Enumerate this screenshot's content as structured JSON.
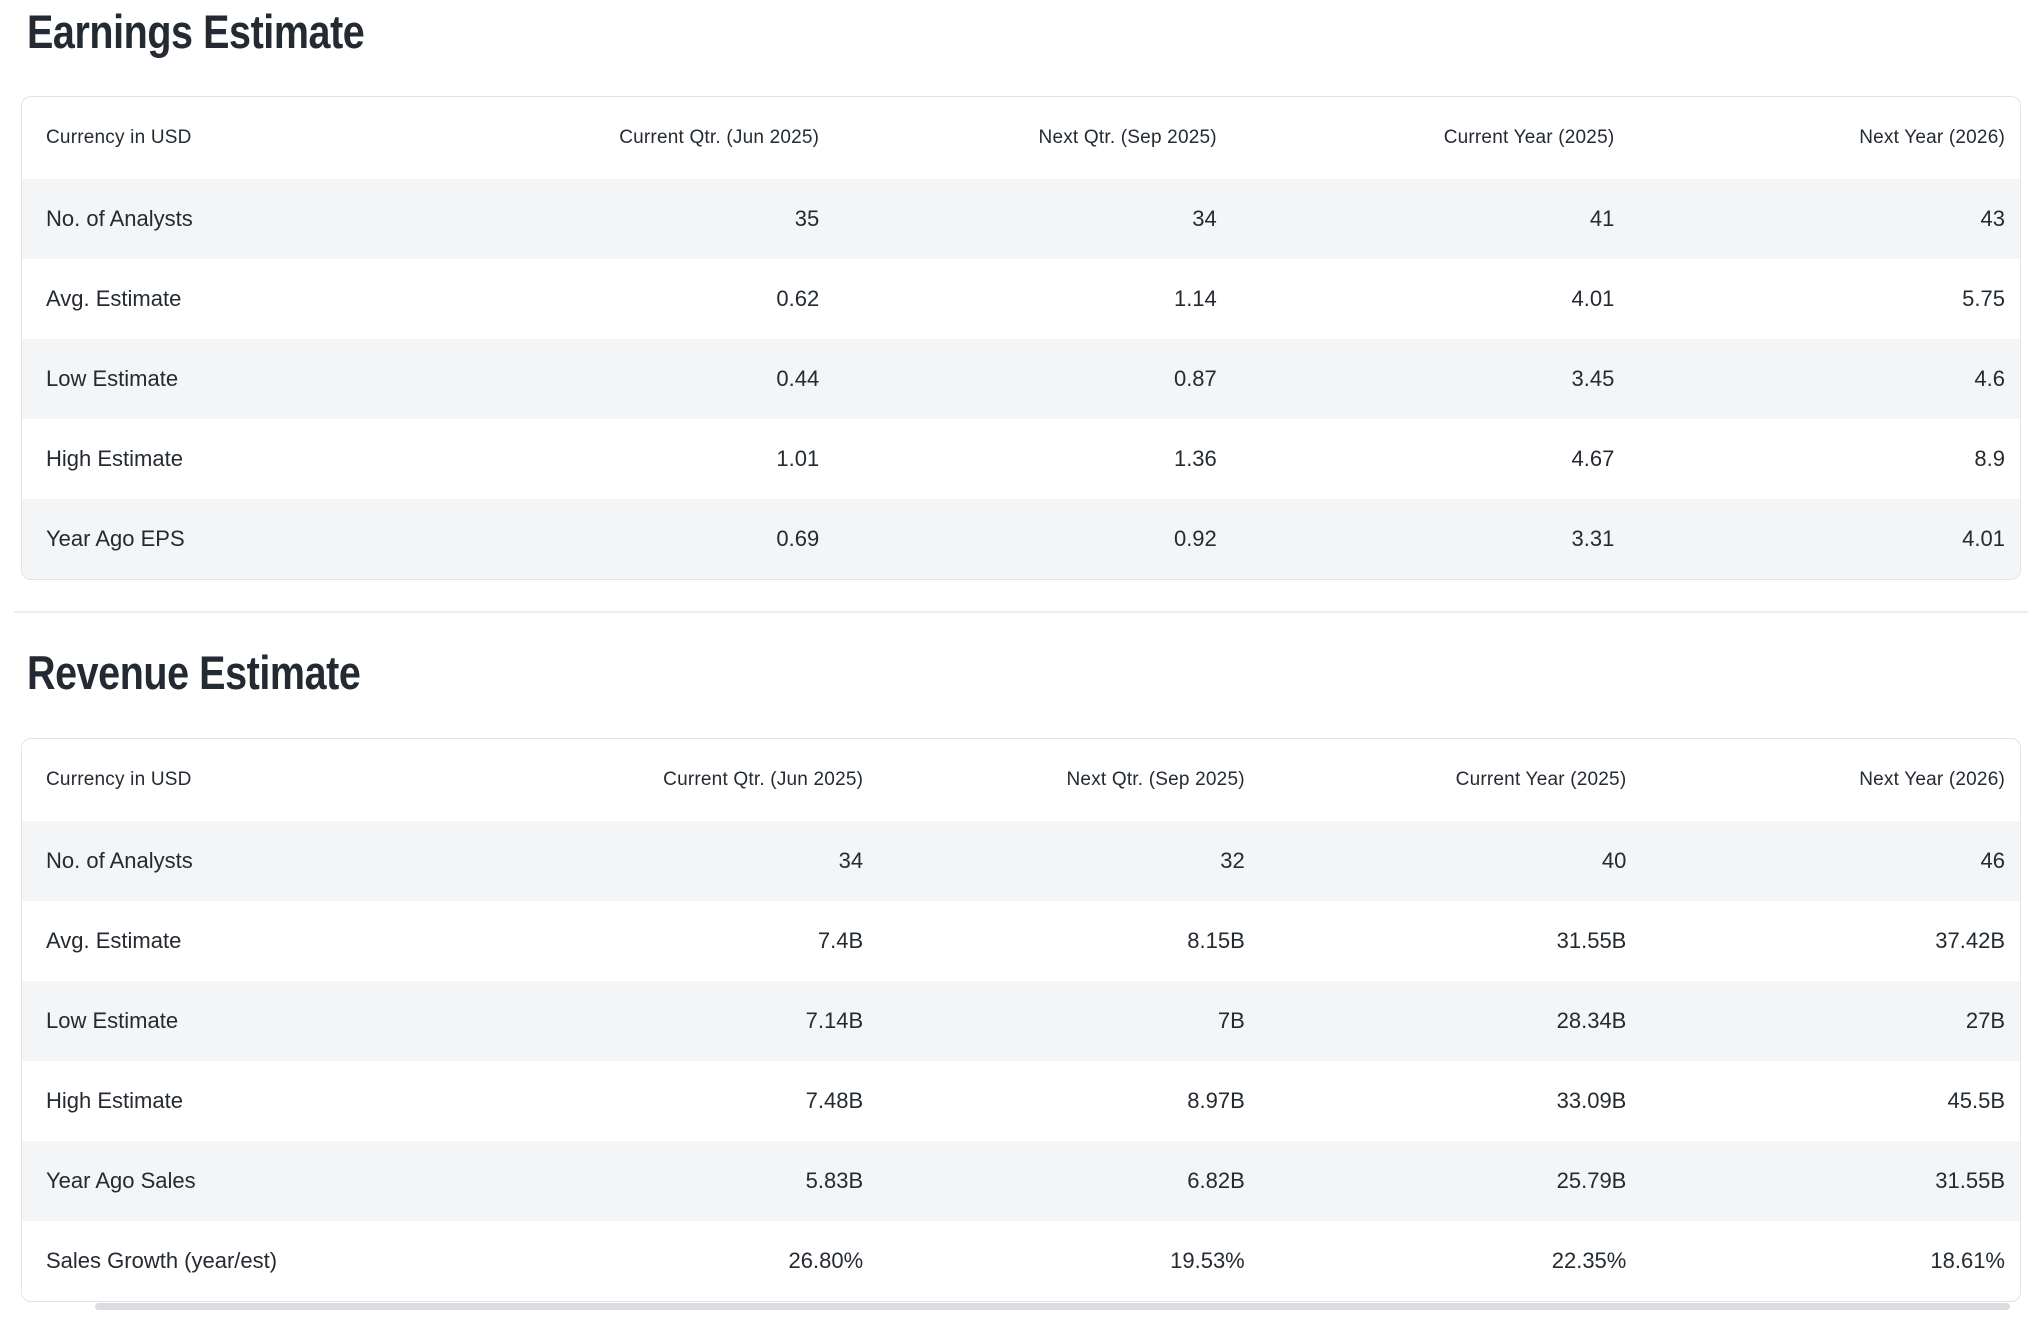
{
  "colors": {
    "text": "#232a31",
    "row_stripe": "#f4f5f6",
    "card_border": "#e0e3e8",
    "section_divider": "#ececef",
    "scrollbar_thumb": "#dbdce1"
  },
  "sections": {
    "earnings": {
      "title": "Earnings Estimate",
      "table": {
        "header": [
          "Currency in USD",
          "Current Qtr. (Jun 2025)",
          "Next Qtr. (Sep 2025)",
          "Current Year (2025)",
          "Next Year (2026)"
        ],
        "rows": [
          {
            "label": "No. of Analysts",
            "values": [
              "35",
              "34",
              "41",
              "43"
            ]
          },
          {
            "label": "Avg. Estimate",
            "values": [
              "0.62",
              "1.14",
              "4.01",
              "5.75"
            ]
          },
          {
            "label": "Low Estimate",
            "values": [
              "0.44",
              "0.87",
              "3.45",
              "4.6"
            ]
          },
          {
            "label": "High Estimate",
            "values": [
              "1.01",
              "1.36",
              "4.67",
              "8.9"
            ]
          },
          {
            "label": "Year Ago EPS",
            "values": [
              "0.69",
              "0.92",
              "3.31",
              "4.01"
            ]
          }
        ]
      }
    },
    "revenue": {
      "title": "Revenue Estimate",
      "table": {
        "header": [
          "Currency in USD",
          "Current Qtr. (Jun 2025)",
          "Next Qtr. (Sep 2025)",
          "Current Year (2025)",
          "Next Year (2026)"
        ],
        "rows": [
          {
            "label": "No. of Analysts",
            "values": [
              "34",
              "32",
              "40",
              "46"
            ]
          },
          {
            "label": "Avg. Estimate",
            "values": [
              "7.4B",
              "8.15B",
              "31.55B",
              "37.42B"
            ]
          },
          {
            "label": "Low Estimate",
            "values": [
              "7.14B",
              "7B",
              "28.34B",
              "27B"
            ]
          },
          {
            "label": "High Estimate",
            "values": [
              "7.48B",
              "8.97B",
              "33.09B",
              "45.5B"
            ]
          },
          {
            "label": "Year Ago Sales",
            "values": [
              "5.83B",
              "6.82B",
              "25.79B",
              "31.55B"
            ]
          },
          {
            "label": "Sales Growth (year/est)",
            "values": [
              "26.80%",
              "19.53%",
              "22.35%",
              "18.61%"
            ]
          }
        ]
      }
    }
  }
}
